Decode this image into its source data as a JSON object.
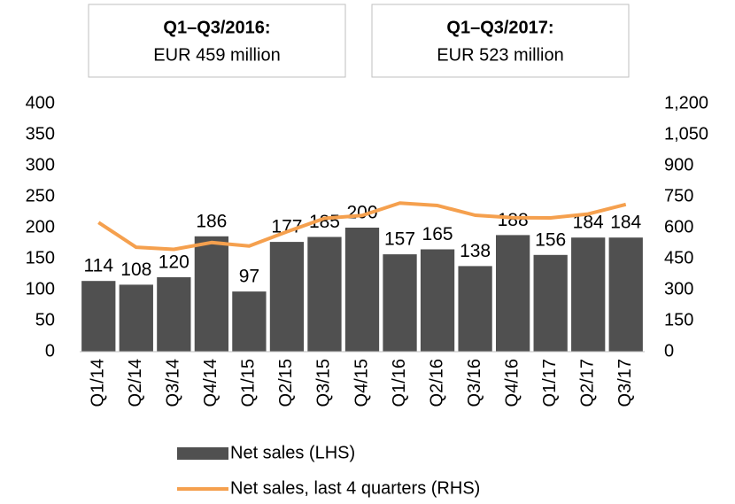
{
  "chart_data": {
    "type": "bar",
    "annotations": [
      {
        "title": "Q1–Q3/2016:",
        "text": "EUR 459 million"
      },
      {
        "title": "Q1–Q3/2017:",
        "text": "EUR 523 million"
      }
    ],
    "categories": [
      "Q1/14",
      "Q2/14",
      "Q3/14",
      "Q4/14",
      "Q1/15",
      "Q2/15",
      "Q3/15",
      "Q4/15",
      "Q1/16",
      "Q2/16",
      "Q3/16",
      "Q4/16",
      "Q1/17",
      "Q2/17",
      "Q3/17"
    ],
    "series": [
      {
        "name": "Net sales (LHS)",
        "type": "bar",
        "color": "#505050",
        "values": [
          114,
          108,
          120,
          186,
          97,
          177,
          185,
          200,
          157,
          165,
          138,
          188,
          156,
          184,
          184
        ]
      },
      {
        "name": "Net sales, last 4 quarters (RHS)",
        "type": "line",
        "axis": "y2",
        "color": "#f5a04e",
        "values": [
          625,
          505,
          495,
          528,
          511,
          580,
          645,
          659,
          719,
          707,
          660,
          648,
          647,
          666,
          712
        ]
      }
    ],
    "ylim": [
      0,
      400
    ],
    "yticks": [
      0,
      50,
      100,
      150,
      200,
      250,
      300,
      350,
      400
    ],
    "y2lim": [
      0,
      1200
    ],
    "y2ticks": [
      0,
      150,
      300,
      450,
      600,
      750,
      900,
      {
        "value": 1050,
        "label": "1,050"
      },
      {
        "value": 1200,
        "label": "1,200"
      }
    ]
  }
}
